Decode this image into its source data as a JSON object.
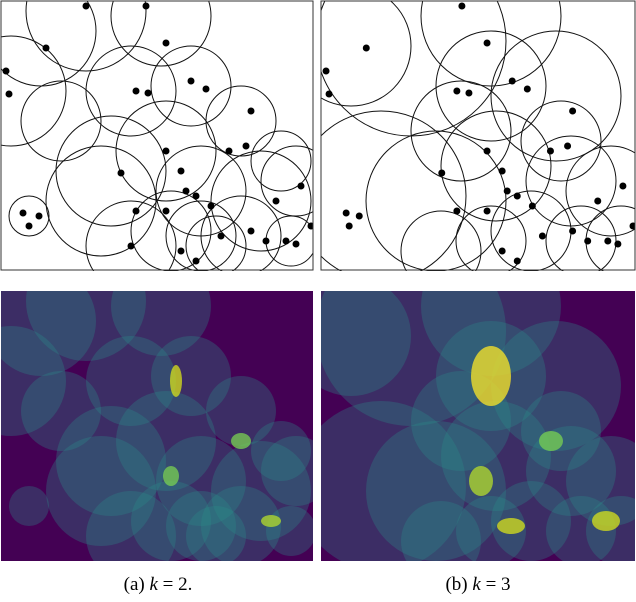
{
  "figure": {
    "captions": [
      {
        "tag": "(a)",
        "var": "k",
        "rest": "= 2."
      },
      {
        "tag": "(b)",
        "var": "k",
        "rest": "= 3"
      }
    ]
  }
}
